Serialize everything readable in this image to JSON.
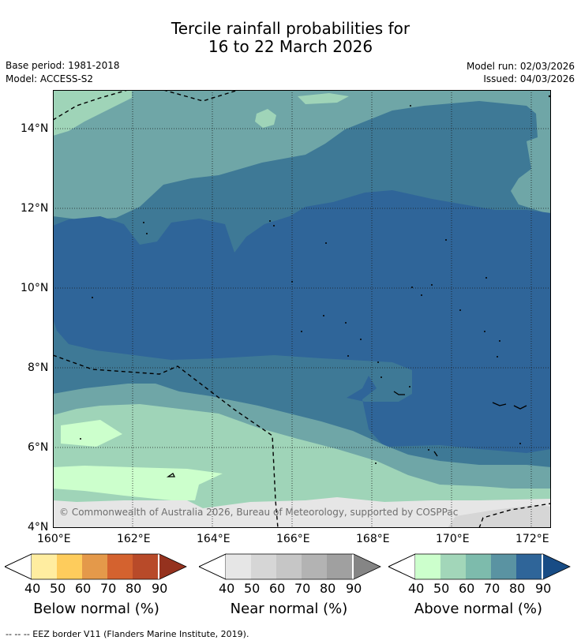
{
  "title": {
    "line1": "Tercile rainfall probabilities for",
    "line2": "16 to 22 March 2026"
  },
  "meta": {
    "base_period": "Base period: 1981-2018",
    "model": "Model: ACCESS-S2",
    "model_run": "Model run: 02/03/2026",
    "issued": "Issued: 04/03/2026"
  },
  "map": {
    "copyright": "© Commonwealth of Australia 2026, Bureau of Meteorology, supported by COSPPac",
    "lat_labels": [
      "14°N",
      "12°N",
      "10°N",
      "8°N",
      "6°N",
      "4°N"
    ],
    "lon_labels": [
      "160°E",
      "162°E",
      "164°E",
      "166°E",
      "168°E",
      "170°E",
      "172°E"
    ]
  },
  "colorbars": [
    {
      "name": "below",
      "label": "Below normal (%)",
      "ticks": [
        "40",
        "50",
        "60",
        "70",
        "80",
        "90"
      ],
      "colors": [
        "#ffeda0",
        "#fecc5c",
        "#e4994a",
        "#d4622f",
        "#b84a29",
        "#95321e"
      ]
    },
    {
      "name": "near",
      "label": "Near normal (%)",
      "ticks": [
        "40",
        "50",
        "60",
        "70",
        "80",
        "90"
      ],
      "colors": [
        "#e6e6e6",
        "#d6d6d6",
        "#c6c6c6",
        "#b3b3b3",
        "#a0a0a0",
        "#858585"
      ]
    },
    {
      "name": "above",
      "label": "Above normal (%)",
      "ticks": [
        "40",
        "50",
        "60",
        "70",
        "80",
        "90"
      ],
      "colors": [
        "#ccffcc",
        "#a2d6b9",
        "#7dbbac",
        "#5a93a2",
        "#2f6599",
        "#184c85"
      ]
    }
  ],
  "footnote": "-- -- -- EEZ border V11 (Flanders Marine Institute, 2019)."
}
